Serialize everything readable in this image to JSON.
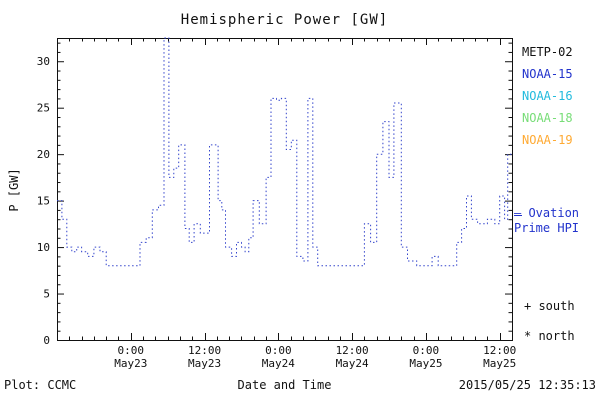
{
  "chart_data": {
    "type": "line",
    "step": true,
    "title": "Hemispheric Power [GW]",
    "xlabel": "Date and Time",
    "ylabel": "P [GW]",
    "ylim": [
      0,
      32.5
    ],
    "yticks": [
      0,
      5,
      10,
      15,
      20,
      25,
      30
    ],
    "y_minor_step": 1,
    "x_hours_span": 74,
    "x_start": "2015/05/22 12:00",
    "xticks": [
      {
        "hour": 12,
        "time": "0:00",
        "date": "May23"
      },
      {
        "hour": 24,
        "time": "12:00",
        "date": "May23"
      },
      {
        "hour": 36,
        "time": "0:00",
        "date": "May24"
      },
      {
        "hour": 48,
        "time": "12:00",
        "date": "May24"
      },
      {
        "hour": 60,
        "time": "0:00",
        "date": "May25"
      },
      {
        "hour": 72,
        "time": "12:00",
        "date": "May25"
      }
    ],
    "x_minor_step_hours": 2,
    "grid": false,
    "series": [
      {
        "name": "Ovation Prime HPI",
        "color": "#3344cc",
        "line_style": "dotted",
        "points": [
          [
            0,
            15
          ],
          [
            0.8,
            13
          ],
          [
            1.6,
            10
          ],
          [
            2.4,
            9.5
          ],
          [
            3.2,
            10
          ],
          [
            4,
            9.5
          ],
          [
            5,
            9
          ],
          [
            6,
            10
          ],
          [
            7,
            9.5
          ],
          [
            8,
            8
          ],
          [
            13.5,
            10.5
          ],
          [
            14.5,
            11
          ],
          [
            15.5,
            14
          ],
          [
            16.5,
            14.5
          ],
          [
            17.4,
            32.5
          ],
          [
            18.2,
            17.5
          ],
          [
            19,
            18.5
          ],
          [
            19.8,
            21
          ],
          [
            20.8,
            12
          ],
          [
            21.5,
            10.5
          ],
          [
            22.3,
            12.5
          ],
          [
            23.3,
            11.5
          ],
          [
            24.8,
            21
          ],
          [
            26.2,
            15
          ],
          [
            26.8,
            14
          ],
          [
            27.4,
            10
          ],
          [
            28.4,
            9
          ],
          [
            29.2,
            10.5
          ],
          [
            30,
            10
          ],
          [
            30.6,
            9.5
          ],
          [
            31.2,
            11
          ],
          [
            31.9,
            15
          ],
          [
            32.9,
            12.5
          ],
          [
            34,
            17.5
          ],
          [
            34.8,
            26
          ],
          [
            35.7,
            25.8
          ],
          [
            36.5,
            26
          ],
          [
            37.3,
            20.5
          ],
          [
            38.1,
            21.5
          ],
          [
            39,
            9
          ],
          [
            40,
            8.5
          ],
          [
            40.8,
            26
          ],
          [
            41.6,
            10
          ],
          [
            42.4,
            8
          ],
          [
            50,
            12.5
          ],
          [
            51,
            10.5
          ],
          [
            52,
            20
          ],
          [
            53,
            23.5
          ],
          [
            54,
            17.5
          ],
          [
            54.8,
            25.5
          ],
          [
            56,
            10
          ],
          [
            57,
            8.5
          ],
          [
            58.5,
            8
          ],
          [
            61,
            9
          ],
          [
            62,
            8
          ],
          [
            65,
            10.5
          ],
          [
            65.8,
            12
          ],
          [
            66.6,
            15.5
          ],
          [
            67.4,
            13
          ],
          [
            68.4,
            12.5
          ],
          [
            70,
            13
          ],
          [
            71.2,
            12.5
          ],
          [
            72,
            15.5
          ],
          [
            72.8,
            13
          ],
          [
            73.3,
            20
          ],
          [
            74,
            20
          ]
        ]
      }
    ]
  },
  "legend": {
    "satellites": [
      {
        "label": "METP-02",
        "color": "#111111"
      },
      {
        "label": "NOAA-15",
        "color": "#2233cc"
      },
      {
        "label": "NOAA-16",
        "color": "#22bbdd"
      },
      {
        "label": "NOAA-18",
        "color": "#77dd77"
      },
      {
        "label": "NOAA-19",
        "color": "#ffaa33"
      }
    ],
    "note_line1": "— Ovation",
    "note_line2": "Prime HPI",
    "note_color": "#2233cc",
    "marker_south": "+ south",
    "marker_north": "* north"
  },
  "footer": {
    "left": "Plot: CCMC",
    "right": "2015/05/25 12:35:13"
  }
}
